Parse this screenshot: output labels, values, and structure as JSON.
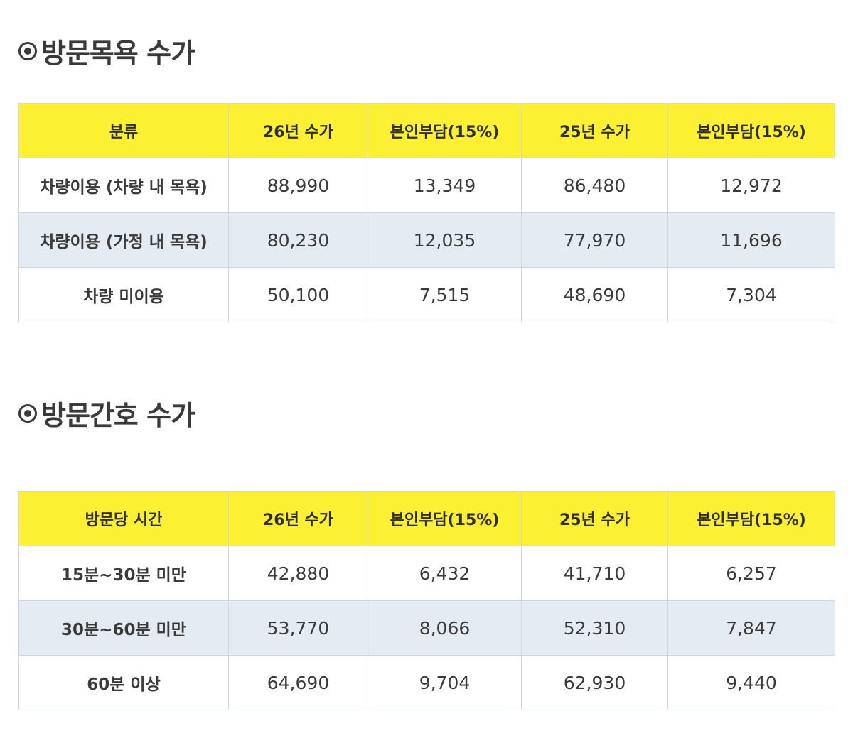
{
  "bathing": {
    "title": "방문목욕 수가",
    "headers": [
      "분류",
      "26년 수가",
      "본인부담(15%)",
      "25년 수가",
      "본인부담(15%)"
    ],
    "rows": [
      [
        "차량이용 (차량 내 목욕)",
        "88,990",
        "13,349",
        "86,480",
        "12,972"
      ],
      [
        "차량이용 (가정 내 목욕)",
        "80,230",
        "12,035",
        "77,970",
        "11,696"
      ],
      [
        "차량 미이용",
        "50,100",
        "7,515",
        "48,690",
        "7,304"
      ]
    ]
  },
  "nursing": {
    "title": "방문간호 수가",
    "headers": [
      "방문당 시간",
      "26년 수가",
      "본인부담(15%)",
      "25년 수가",
      "본인부담(15%)"
    ],
    "rows": [
      [
        "15분~30분 미만",
        "42,880",
        "6,432",
        "41,710",
        "6,257"
      ],
      [
        "30분~60분 미만",
        "53,770",
        "8,066",
        "52,310",
        "7,847"
      ],
      [
        "60분 이상",
        "64,690",
        "9,704",
        "62,930",
        "9,440"
      ]
    ]
  },
  "colors": {
    "header_bg": "#fbf032",
    "alt_row_bg": "#e5ebf3",
    "border": "#cfd6de"
  }
}
